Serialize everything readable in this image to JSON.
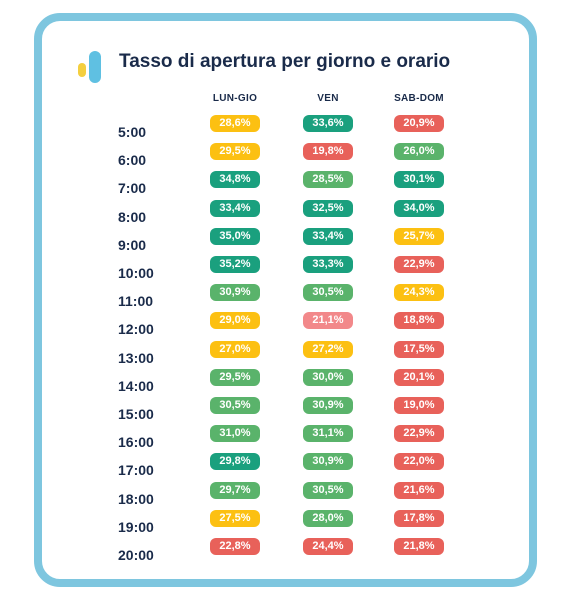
{
  "chart_data": {
    "type": "table",
    "title": "Tasso di apertura per giorno e orario",
    "columns": [
      "LUN-GIO",
      "VEN",
      "SAB-DOM"
    ],
    "rows": [
      "5:00",
      "6:00",
      "7:00",
      "8:00",
      "9:00",
      "10:00",
      "11:00",
      "12:00",
      "13:00",
      "14:00",
      "15:00",
      "16:00",
      "17:00",
      "18:00",
      "19:00",
      "20:00"
    ],
    "unit": "%",
    "values": [
      [
        28.6,
        33.6,
        20.9
      ],
      [
        29.5,
        19.8,
        26.0
      ],
      [
        34.8,
        28.5,
        30.1
      ],
      [
        33.4,
        32.5,
        34.0
      ],
      [
        35.0,
        33.4,
        25.7
      ],
      [
        35.2,
        33.3,
        22.9
      ],
      [
        30.9,
        30.5,
        24.3
      ],
      [
        29.0,
        21.1,
        18.8
      ],
      [
        27.0,
        27.2,
        17.5
      ],
      [
        29.5,
        30.0,
        20.1
      ],
      [
        30.5,
        30.9,
        19.0
      ],
      [
        31.0,
        31.1,
        22.9
      ],
      [
        29.8,
        30.9,
        22.0
      ],
      [
        29.7,
        30.5,
        21.6
      ],
      [
        27.5,
        28.0,
        17.8
      ],
      [
        22.8,
        24.4,
        21.8
      ]
    ],
    "labels": [
      [
        "28,6%",
        "33,6%",
        "20,9%"
      ],
      [
        "29,5%",
        "19,8%",
        "26,0%"
      ],
      [
        "34,8%",
        "28,5%",
        "30,1%"
      ],
      [
        "33,4%",
        "32,5%",
        "34,0%"
      ],
      [
        "35,0%",
        "33,4%",
        "25,7%"
      ],
      [
        "35,2%",
        "33,3%",
        "22,9%"
      ],
      [
        "30,9%",
        "30,5%",
        "24,3%"
      ],
      [
        "29,0%",
        "21,1%",
        "18,8%"
      ],
      [
        "27,0%",
        "27,2%",
        "17,5%"
      ],
      [
        "29,5%",
        "30,0%",
        "20,1%"
      ],
      [
        "30,5%",
        "30,9%",
        "19,0%"
      ],
      [
        "31,0%",
        "31,1%",
        "22,9%"
      ],
      [
        "29,8%",
        "30,9%",
        "22,0%"
      ],
      [
        "29,7%",
        "30,5%",
        "21,6%"
      ],
      [
        "27,5%",
        "28,0%",
        "17,8%"
      ],
      [
        "22,8%",
        "24,4%",
        "21,8%"
      ]
    ],
    "cell_colors": [
      [
        "#fcc012",
        "#1aa07e",
        "#e8615a"
      ],
      [
        "#fcc012",
        "#e8615a",
        "#5ab36b"
      ],
      [
        "#1aa07e",
        "#5ab36b",
        "#1aa07e"
      ],
      [
        "#1aa07e",
        "#1aa07e",
        "#1aa07e"
      ],
      [
        "#1aa07e",
        "#1aa07e",
        "#fcc012"
      ],
      [
        "#1aa07e",
        "#1aa07e",
        "#e8615a"
      ],
      [
        "#5ab36b",
        "#5ab36b",
        "#fcc012"
      ],
      [
        "#fcc012",
        "#f2888a",
        "#e8615a"
      ],
      [
        "#fcc012",
        "#fcc012",
        "#e8615a"
      ],
      [
        "#5ab36b",
        "#5ab36b",
        "#e8615a"
      ],
      [
        "#5ab36b",
        "#5ab36b",
        "#e8615a"
      ],
      [
        "#5ab36b",
        "#5ab36b",
        "#e8615a"
      ],
      [
        "#1aa07e",
        "#5ab36b",
        "#e8615a"
      ],
      [
        "#5ab36b",
        "#5ab36b",
        "#e8615a"
      ],
      [
        "#fcc012",
        "#5ab36b",
        "#e8615a"
      ],
      [
        "#e8615a",
        "#e8615a",
        "#e8615a"
      ]
    ]
  },
  "colors": {
    "frame": "#7ec6df",
    "text": "#1a2b4a",
    "logo_yellow": "#f4cf3f",
    "logo_blue": "#5fc0e2"
  }
}
